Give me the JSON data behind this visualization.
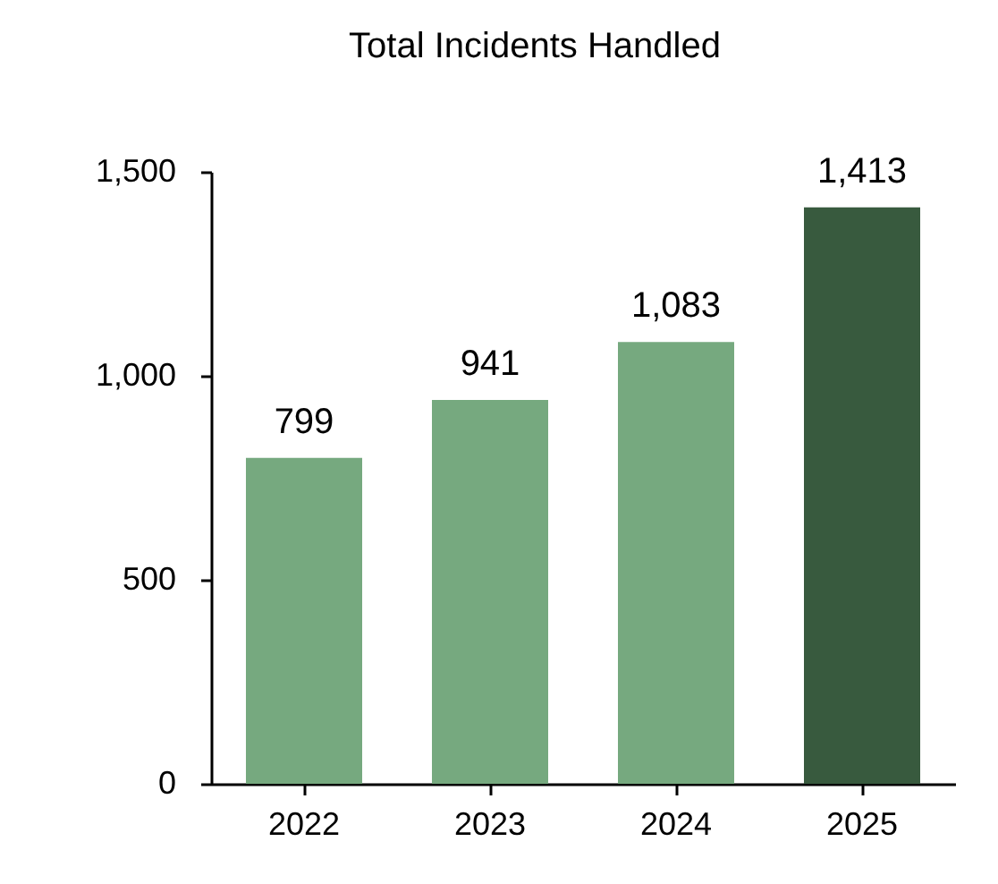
{
  "chart_data": {
    "type": "bar",
    "title": "Total Incidents Handled",
    "categories": [
      "2022",
      "2023",
      "2024",
      "2025"
    ],
    "values": [
      799,
      941,
      1083,
      1413
    ],
    "colors": [
      "#76a97f",
      "#76a97f",
      "#76a97f",
      "#385a3e"
    ],
    "value_labels": [
      "799",
      "941",
      "1,083",
      "1,413"
    ],
    "ylim": [
      0,
      1500
    ],
    "yticks": [
      0,
      500,
      {
        "value": 1000,
        "label": "1,000"
      },
      {
        "value": 1500,
        "label": "1,500"
      }
    ],
    "grid": false
  }
}
